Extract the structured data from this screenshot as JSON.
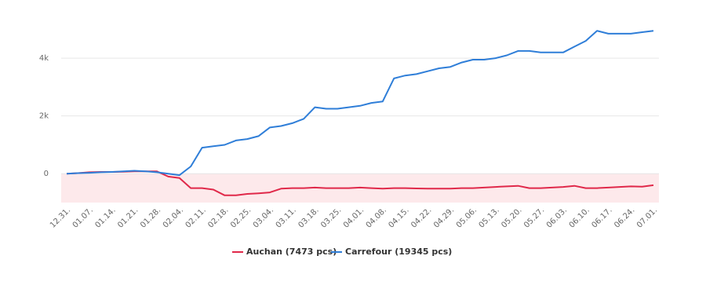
{
  "chart_data": {
    "type": "line",
    "categories": [
      "12.31.",
      null,
      "01.07.",
      null,
      "01.14.",
      null,
      "01.21.",
      null,
      "01.28.",
      null,
      "02.04.",
      null,
      "02.11.",
      null,
      "02.18.",
      null,
      "02.25.",
      null,
      "03.04.",
      null,
      "03.11.",
      null,
      "03.18.",
      null,
      "03.25.",
      null,
      "04.01.",
      null,
      "04.08.",
      null,
      "04.15.",
      null,
      "04.22.",
      null,
      "04.29.",
      null,
      "05.06.",
      null,
      "05.13.",
      null,
      "05.20.",
      null,
      "05.27.",
      null,
      "06.03.",
      null,
      "06.10.",
      null,
      "06.17.",
      null,
      "06.24.",
      null,
      "07.01."
    ],
    "series": [
      {
        "name": "Auchan (7473 pcs)",
        "color": "#e0294a",
        "values": [
          0,
          20,
          50,
          60,
          60,
          70,
          80,
          80,
          80,
          -100,
          -150,
          -500,
          -500,
          -550,
          -750,
          -750,
          -700,
          -680,
          -650,
          -520,
          -500,
          -500,
          -480,
          -500,
          -500,
          -500,
          -480,
          -500,
          -520,
          -500,
          -500,
          -510,
          -520,
          -520,
          -520,
          -500,
          -500,
          -480,
          -460,
          -440,
          -420,
          -500,
          -500,
          -480,
          -460,
          -420,
          -500,
          -500,
          -480,
          -460,
          -440,
          -450,
          -400
        ]
      },
      {
        "name": "Carrefour (19345 pcs)",
        "color": "#2f7ed8",
        "values": [
          0,
          20,
          30,
          50,
          60,
          80,
          100,
          80,
          50,
          0,
          -50,
          250,
          900,
          950,
          1000,
          1150,
          1200,
          1300,
          1600,
          1650,
          1750,
          1900,
          2300,
          2250,
          2250,
          2300,
          2350,
          2450,
          2500,
          3300,
          3400,
          3450,
          3550,
          3650,
          3700,
          3850,
          3950,
          3950,
          4000,
          4100,
          4250,
          4250,
          4200,
          4200,
          4200,
          4400,
          4600,
          4950,
          4850,
          4850,
          4850,
          4900,
          4950
        ]
      }
    ],
    "ylim": [
      -1000,
      5200
    ],
    "yticks": [
      0,
      {
        "value": 2000,
        "label": "2k"
      },
      {
        "value": 4000,
        "label": "4k"
      }
    ],
    "grid": true,
    "legend": "bottom"
  }
}
